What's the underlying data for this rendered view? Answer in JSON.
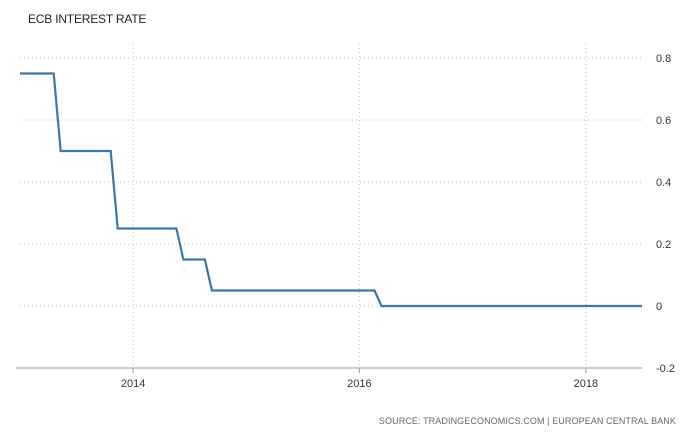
{
  "chart_data": {
    "type": "line",
    "title": "ECB INTEREST RATE",
    "xlabel": "",
    "ylabel": "",
    "source": "SOURCE: TRADINGECONOMICS.COM | EUROPEAN CENTRAL BANK",
    "ylim": [
      -0.2,
      0.8
    ],
    "xlim": [
      "2013-01-01",
      "2018-07-01"
    ],
    "y_ticks": [
      -0.2,
      0,
      0.2,
      0.4,
      0.6,
      0.8
    ],
    "y_tick_labels": [
      "-0.2",
      "0",
      "0.2",
      "0.4",
      "0.6",
      "0.8"
    ],
    "x_ticks": [
      "2014-01-01",
      "2016-01-01",
      "2018-01-01"
    ],
    "x_tick_labels": [
      "2014",
      "2016",
      "2018"
    ],
    "grid": "horizontal dotted",
    "line_color": "#3a78a8",
    "series": [
      {
        "step": "post",
        "x": [
          "2013-01-01",
          "2013-05-01",
          "2013-11-01",
          "2014-06-01",
          "2014-09-01",
          "2016-03-01",
          "2018-07-01"
        ],
        "y": [
          0.75,
          0.5,
          0.25,
          0.15,
          0.05,
          0.0,
          0.0
        ]
      }
    ]
  }
}
